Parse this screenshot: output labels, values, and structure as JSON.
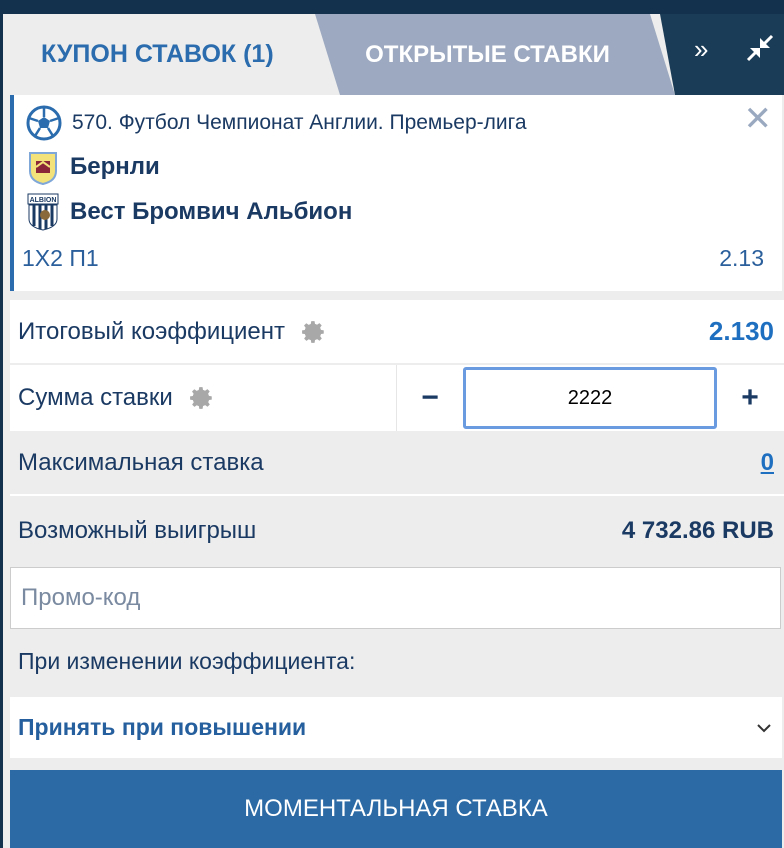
{
  "tabs": {
    "coupon": "КУПОН СТАВОК (1)",
    "open": "ОТКРЫТЫЕ СТАВКИ"
  },
  "icons": {
    "expand": "double-chevron-right-icon",
    "collapse": "collapse-arrows-icon",
    "close": "close-icon",
    "gear": "gear-icon",
    "sport": "soccer-ball-icon"
  },
  "bet": {
    "event": "570. Футбол Чемпионат Англии. Премьер-лига",
    "home_team": "Бернли",
    "away_team": "Вест Бромвич Альбион",
    "away_logo_text": "ALBION",
    "market": "1X2 П1",
    "odds": "2.13"
  },
  "summary": {
    "total_odds_label": "Итоговый коэффициент",
    "total_odds": "2.130",
    "stake_label": "Сумма ставки",
    "stake_value": "2222",
    "minus": "−",
    "plus": "+",
    "max_bet_label": "Максимальная ставка",
    "max_bet_value": "0",
    "possible_win_label": "Возможный выигрыш",
    "possible_win_value": "4 732.86 RUB"
  },
  "promo": {
    "placeholder": "Промо-код"
  },
  "odds_change": {
    "label": "При изменении коэффициента:",
    "selected": "Принять при повышении"
  },
  "submit_label": "МОМЕНТАЛЬНАЯ СТАВКА",
  "colors": {
    "navy": "#13304d",
    "accent": "#2a6cad",
    "button": "#2b6aa5"
  }
}
